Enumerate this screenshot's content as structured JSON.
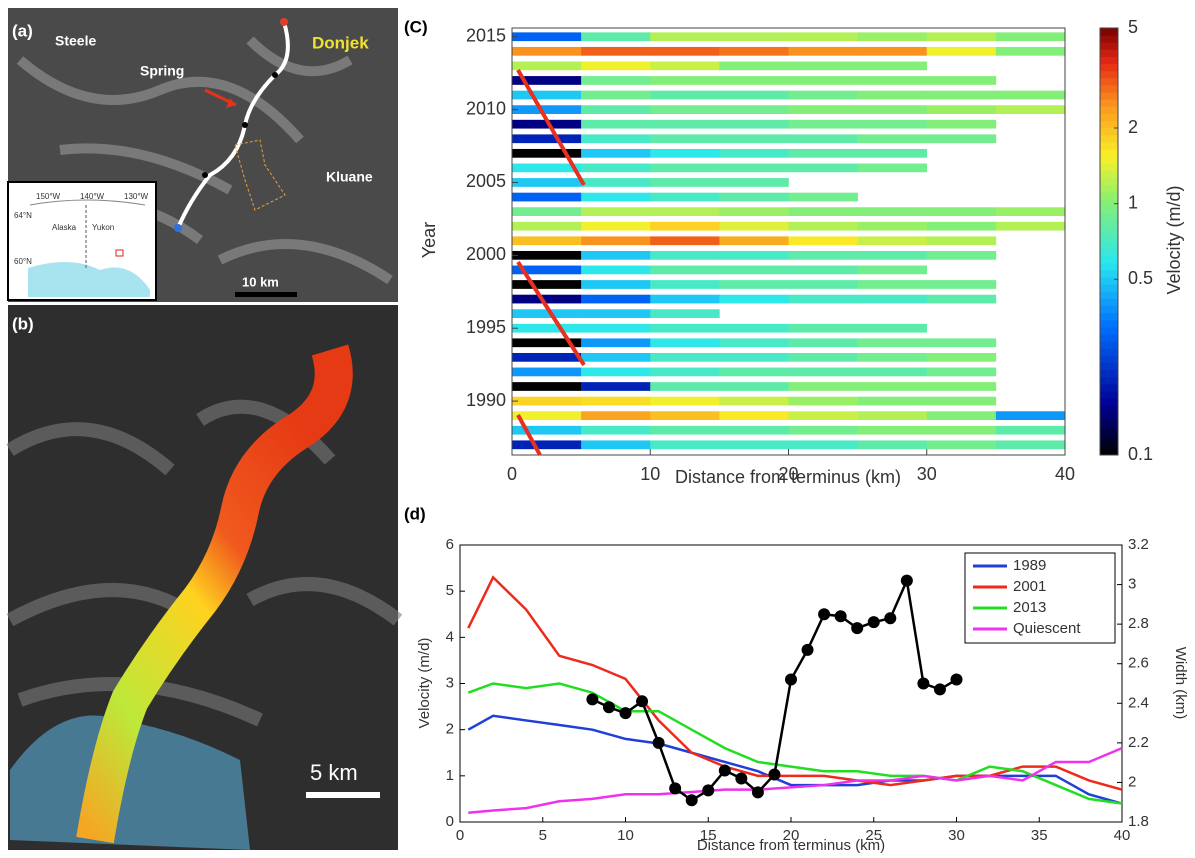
{
  "panels": {
    "a": {
      "label": "(a)",
      "places": [
        "Steele",
        "Spring",
        "Donjek",
        "Kluane"
      ],
      "scale": "10 km",
      "inset": [
        "150°W",
        "140°W",
        "130°W",
        "64°N",
        "60°N",
        "Alaska",
        "Yukon"
      ]
    },
    "b": {
      "label": "(b)",
      "scale": "5 km"
    }
  },
  "chart_data": [
    {
      "type": "heatmap",
      "panel": "(C)",
      "xlabel": "Distance from terminus (km)",
      "ylabel": "Year",
      "colorbar_label": "Velocity (m/d)",
      "xlim": [
        0,
        40
      ],
      "xticks": [
        0,
        10,
        20,
        30,
        40
      ],
      "ylim": [
        1986.3,
        2015.6
      ],
      "yticks": [
        1990,
        1995,
        2000,
        2005,
        2010,
        2015
      ],
      "colorbar_lim": [
        0.1,
        5
      ],
      "colorbar_ticks": [
        0.1,
        0.5,
        1,
        2,
        5
      ],
      "log_color": true,
      "x_bins": [
        0,
        5,
        10,
        15,
        20,
        25,
        30,
        35,
        40
      ],
      "y": [
        2015,
        2014,
        2013,
        2012,
        2011,
        2010,
        2009,
        2008,
        2007,
        2006,
        2005,
        2004,
        2003,
        2002,
        2001,
        2000,
        1999,
        1998,
        1997,
        1996,
        1995,
        1994,
        1993,
        1992,
        1991,
        1990,
        1989,
        1988,
        1987
      ],
      "values": [
        [
          0.3,
          0.8,
          1.2,
          1.2,
          1.2,
          1.1,
          1.2,
          1.0
        ],
        [
          2.5,
          3,
          3,
          2.8,
          2.5,
          2.5,
          1.5,
          1.0
        ],
        [
          1.2,
          1.5,
          1.3,
          1.0,
          1.0,
          1.0,
          null,
          null
        ],
        [
          0.15,
          0.9,
          1.0,
          1.0,
          1.0,
          1.0,
          1.0,
          null
        ],
        [
          0.5,
          0.9,
          0.8,
          0.8,
          0.9,
          1.0,
          1.0,
          1.0
        ],
        [
          0.4,
          0.8,
          0.9,
          0.9,
          1.0,
          1.0,
          1.1,
          1.2
        ],
        [
          0.15,
          0.8,
          0.8,
          0.8,
          0.9,
          0.9,
          1.0,
          null
        ],
        [
          0.2,
          0.7,
          0.8,
          0.8,
          0.8,
          0.9,
          0.9,
          null
        ],
        [
          0.1,
          0.5,
          0.6,
          0.7,
          0.8,
          0.8,
          null,
          null
        ],
        [
          0.6,
          0.7,
          0.8,
          0.8,
          0.8,
          0.9,
          null,
          null
        ],
        [
          0.5,
          0.7,
          0.8,
          0.8,
          null,
          null,
          null,
          null
        ],
        [
          0.3,
          0.6,
          0.7,
          0.8,
          0.9,
          null,
          null,
          null
        ],
        [
          0.9,
          1.2,
          1.2,
          1.1,
          1.0,
          1.0,
          1.0,
          1.1
        ],
        [
          1.2,
          1.5,
          1.8,
          1.4,
          1.2,
          1.1,
          1.0,
          1.2
        ],
        [
          2,
          2.5,
          3,
          2.2,
          1.6,
          1.3,
          1.2,
          null
        ],
        [
          0.1,
          0.5,
          0.7,
          0.7,
          0.8,
          0.8,
          0.9,
          null
        ],
        [
          0.3,
          0.6,
          0.8,
          0.8,
          0.8,
          0.9,
          null,
          null
        ],
        [
          0.1,
          0.5,
          0.7,
          0.8,
          0.8,
          0.9,
          0.9,
          null
        ],
        [
          0.15,
          0.3,
          0.5,
          0.6,
          0.7,
          0.7,
          0.8,
          null
        ],
        [
          0.5,
          0.5,
          0.7,
          null,
          null,
          null,
          null,
          null
        ],
        [
          0.6,
          0.6,
          0.7,
          0.7,
          0.8,
          0.8,
          null,
          null
        ],
        [
          0.1,
          0.4,
          0.6,
          0.7,
          0.8,
          0.9,
          0.9,
          null
        ],
        [
          0.2,
          0.5,
          0.7,
          0.7,
          0.8,
          0.9,
          1.0,
          null
        ],
        [
          0.4,
          0.6,
          0.7,
          0.8,
          0.8,
          0.8,
          0.9,
          null
        ],
        [
          0.1,
          0.2,
          0.8,
          0.8,
          1.0,
          1.0,
          1.0,
          null
        ],
        [
          1.8,
          1.7,
          1.5,
          1.3,
          1.1,
          1.0,
          1.0,
          null
        ],
        [
          1.5,
          2.3,
          2.0,
          1.6,
          1.3,
          1.2,
          1.0,
          0.4
        ],
        [
          0.5,
          0.7,
          0.8,
          0.8,
          0.9,
          1.0,
          1.0,
          0.8
        ],
        [
          0.2,
          0.5,
          0.7,
          0.7,
          0.7,
          0.8,
          0.9,
          0.8
        ]
      ]
    },
    {
      "type": "line",
      "panel": "(d)",
      "xlabel": "Distance from terminus (km)",
      "ylabel": "Velocity (m/d)",
      "y2label": "Width (km)",
      "xlim": [
        0,
        40
      ],
      "xticks": [
        0,
        5,
        10,
        15,
        20,
        25,
        30,
        35,
        40
      ],
      "ylim": [
        0,
        6
      ],
      "yticks": [
        0,
        1,
        2,
        3,
        4,
        5,
        6
      ],
      "y2lim": [
        1.8,
        3.2
      ],
      "y2ticks": [
        1.8,
        2,
        2.2,
        2.4,
        2.6,
        2.8,
        3,
        3.2
      ],
      "legend": "upper right",
      "x": [
        0.5,
        2,
        4,
        6,
        8,
        10,
        12,
        14,
        16,
        18,
        20,
        22,
        24,
        26,
        28,
        30,
        32,
        34,
        36,
        38,
        40
      ],
      "series": [
        {
          "name": "1989",
          "color": "#1f3fd8",
          "values": [
            2.0,
            2.3,
            2.2,
            2.1,
            2.0,
            1.8,
            1.7,
            1.5,
            1.3,
            1.1,
            0.8,
            0.8,
            0.8,
            0.9,
            0.9,
            1.0,
            1.0,
            1.0,
            1.0,
            0.6,
            0.4
          ]
        },
        {
          "name": "2001",
          "color": "#ee2a1b",
          "values": [
            4.2,
            5.3,
            4.6,
            3.6,
            3.4,
            3.1,
            2.2,
            1.5,
            1.2,
            1.0,
            1.0,
            1.0,
            0.9,
            0.8,
            0.9,
            1.0,
            1.0,
            1.2,
            1.2,
            0.9,
            0.7
          ]
        },
        {
          "name": "2013",
          "color": "#22dd22",
          "values": [
            2.8,
            3.0,
            2.9,
            3.0,
            2.8,
            2.4,
            2.4,
            2.0,
            1.6,
            1.3,
            1.2,
            1.1,
            1.1,
            1.0,
            1.0,
            0.9,
            1.2,
            1.1,
            0.8,
            0.5,
            0.4
          ]
        },
        {
          "name": "Quiescent",
          "color": "#ee33ee",
          "values": [
            0.2,
            0.25,
            0.3,
            0.45,
            0.5,
            0.6,
            0.6,
            0.65,
            0.7,
            0.7,
            0.75,
            0.8,
            0.9,
            0.9,
            1.0,
            0.9,
            1.0,
            0.9,
            1.3,
            1.3,
            1.6
          ]
        },
        {
          "color": "#000000",
          "axis": "y2",
          "x": [
            8,
            9,
            10,
            11,
            12,
            13,
            14,
            15,
            16,
            17,
            18,
            19,
            20,
            21,
            22,
            23,
            24,
            25,
            26,
            27,
            28,
            29,
            30
          ],
          "values": [
            2.42,
            2.38,
            2.35,
            2.41,
            2.2,
            1.97,
            1.91,
            1.96,
            2.06,
            2.02,
            1.95,
            2.04,
            2.52,
            2.67,
            2.85,
            2.84,
            2.78,
            2.81,
            2.83,
            3.02,
            2.5,
            2.47,
            2.52
          ]
        }
      ]
    }
  ]
}
